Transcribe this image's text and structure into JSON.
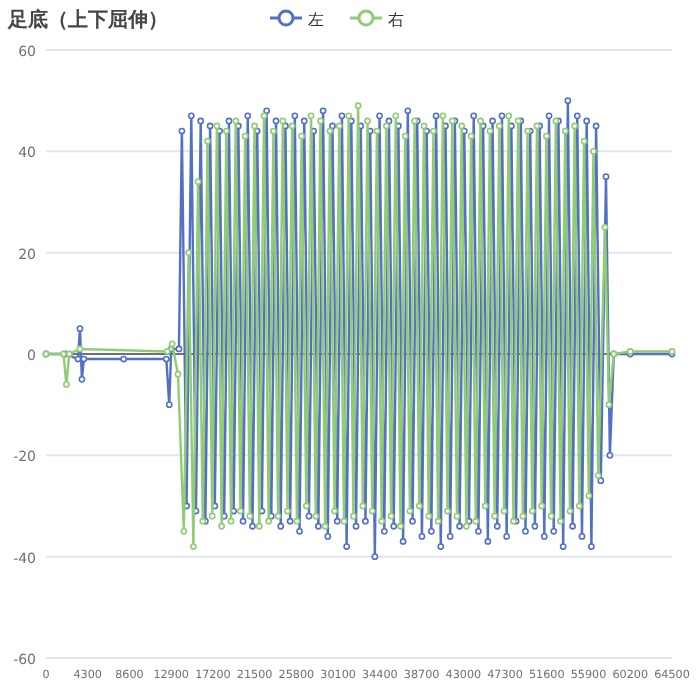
{
  "chart_data": {
    "type": "line",
    "title": "足底（上下屈伸）",
    "legend": "top",
    "grid": "y",
    "marker": "circle",
    "xlim": [
      0,
      64500
    ],
    "xticks": [
      0,
      4300,
      8600,
      12900,
      17200,
      21500,
      25800,
      30100,
      34400,
      38700,
      43000,
      47300,
      51600,
      55900,
      60200,
      64500
    ],
    "ylim": [
      -60,
      60
    ],
    "yticks": [
      -60,
      -40,
      -20,
      0,
      20,
      40,
      60
    ],
    "series": [
      {
        "name": "左",
        "color": "#5470c6",
        "x": [
          0,
          2000,
          3300,
          3500,
          3700,
          3900,
          8000,
          12400,
          12700,
          12900,
          13700,
          14000,
          14485,
          14970,
          15455,
          15940,
          16425,
          16910,
          17395,
          17880,
          18365,
          18850,
          19335,
          19820,
          20305,
          20790,
          21275,
          21760,
          22245,
          22730,
          23215,
          23700,
          24185,
          24670,
          25155,
          25640,
          26125,
          26610,
          27095,
          27580,
          28065,
          28550,
          29035,
          29520,
          30005,
          30490,
          30975,
          31460,
          31945,
          32430,
          32915,
          33400,
          33885,
          34370,
          34855,
          35340,
          35825,
          36310,
          36795,
          37280,
          37765,
          38250,
          38735,
          39220,
          39705,
          40190,
          40675,
          41160,
          41645,
          42130,
          42615,
          43100,
          43585,
          44070,
          44555,
          45040,
          45525,
          46010,
          46495,
          46980,
          47465,
          47950,
          48435,
          48920,
          49405,
          49890,
          50375,
          50860,
          51345,
          51830,
          52315,
          52800,
          53285,
          53770,
          54255,
          54740,
          55225,
          55710,
          56195,
          56680,
          57165,
          57700,
          58100,
          58500,
          60200,
          64500
        ],
        "values": [
          0,
          0,
          -1,
          5,
          -5,
          -1,
          -1,
          -1,
          -10,
          1,
          1,
          44,
          -30,
          47,
          -31,
          46,
          -33,
          45,
          -30,
          44,
          -32,
          46,
          -31,
          45,
          -33,
          47,
          -34,
          44,
          -31,
          48,
          -32,
          46,
          -34,
          45,
          -33,
          47,
          -35,
          46,
          -32,
          44,
          -34,
          48,
          -36,
          45,
          -33,
          47,
          -38,
          46,
          -34,
          45,
          -33,
          44,
          -40,
          47,
          -35,
          46,
          -34,
          45,
          -37,
          48,
          -33,
          46,
          -36,
          44,
          -35,
          47,
          -38,
          45,
          -36,
          46,
          -34,
          44,
          -33,
          47,
          -35,
          45,
          -37,
          46,
          -34,
          47,
          -36,
          45,
          -33,
          46,
          -35,
          44,
          -34,
          45,
          -36,
          47,
          -35,
          46,
          -38,
          50,
          -34,
          47,
          -36,
          46,
          -38,
          45,
          -25,
          35,
          -20,
          0,
          0,
          0
        ]
      },
      {
        "name": "右",
        "color": "#91cc75",
        "x": [
          0,
          1800,
          2100,
          2400,
          3500,
          12500,
          13000,
          13600,
          14200,
          14700,
          15185,
          15670,
          16155,
          16640,
          17125,
          17610,
          18095,
          18580,
          19065,
          19550,
          20035,
          20520,
          21005,
          21490,
          21975,
          22460,
          22945,
          23430,
          23915,
          24400,
          24885,
          25370,
          25855,
          26340,
          26825,
          27310,
          27795,
          28280,
          28765,
          29250,
          29735,
          30220,
          30705,
          31190,
          31675,
          32160,
          32645,
          33130,
          33615,
          34100,
          34585,
          35070,
          35555,
          36040,
          36525,
          37010,
          37495,
          37980,
          38465,
          38950,
          39435,
          39920,
          40405,
          40890,
          41375,
          41860,
          42345,
          42830,
          43315,
          43800,
          44285,
          44770,
          45255,
          45740,
          46225,
          46710,
          47195,
          47680,
          48165,
          48650,
          49135,
          49620,
          50105,
          50590,
          51075,
          51560,
          52045,
          52530,
          53015,
          53500,
          53985,
          54470,
          54955,
          55440,
          55925,
          56410,
          56895,
          57600,
          58000,
          58500,
          60200,
          64500
        ],
        "values": [
          0,
          0,
          -6,
          0,
          1,
          0.5,
          2,
          -4,
          -35,
          20,
          -38,
          34,
          -33,
          42,
          -32,
          45,
          -34,
          44,
          -33,
          46,
          -31,
          43,
          -32,
          45,
          -34,
          47,
          -33,
          44,
          -32,
          46,
          -31,
          45,
          -33,
          43,
          -30,
          47,
          -32,
          46,
          -34,
          44,
          -31,
          45,
          -33,
          47,
          -32,
          49,
          -30,
          46,
          -31,
          44,
          -33,
          45,
          -32,
          47,
          -34,
          43,
          -31,
          46,
          -30,
          45,
          -32,
          44,
          -33,
          47,
          -31,
          46,
          -32,
          45,
          -34,
          43,
          -33,
          46,
          -30,
          44,
          -32,
          45,
          -31,
          47,
          -33,
          46,
          -32,
          44,
          -31,
          45,
          -30,
          43,
          -32,
          46,
          -33,
          44,
          -31,
          45,
          -30,
          42,
          -28,
          40,
          -24,
          25,
          -10,
          0,
          0.5,
          0.5
        ]
      }
    ]
  }
}
